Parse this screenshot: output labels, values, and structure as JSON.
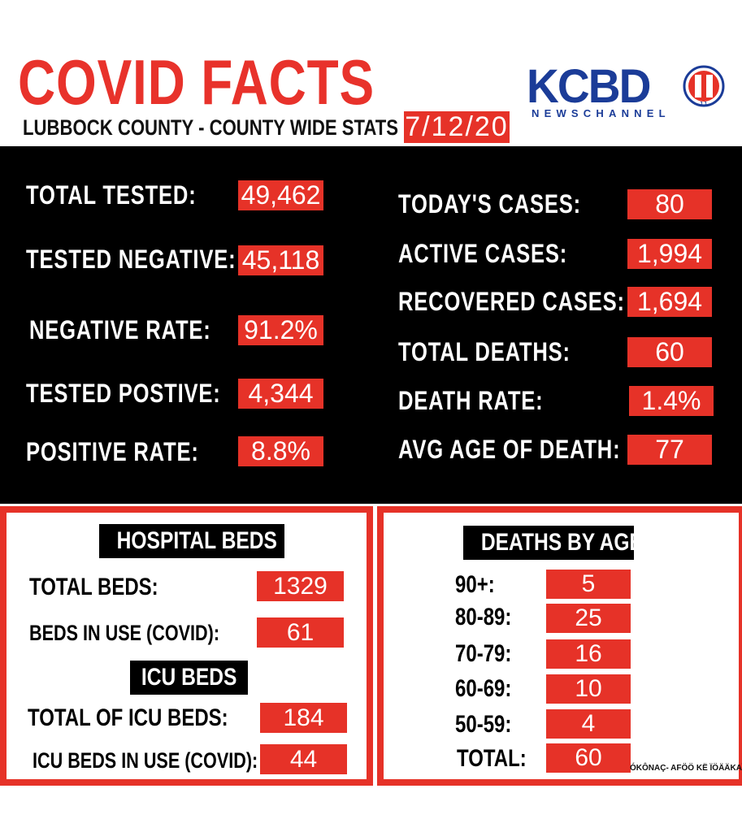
{
  "header": {
    "title": "COVID FACTS",
    "subtitle": "LUBBOCK COUNTY - COUNTY WIDE STATS",
    "date": "7/12/20"
  },
  "logo": {
    "wordmark": "KCBD",
    "tagline": "NEWSCHANNEL",
    "channel_number": "11",
    "colors": {
      "blue": "#1b3c98",
      "red": "#e63228"
    }
  },
  "testing": [
    {
      "label": "TOTAL TESTED:",
      "value": "49,462"
    },
    {
      "label": "TESTED NEGATIVE:",
      "value": "45,118"
    },
    {
      "label": "NEGATIVE RATE:",
      "value": "91.2%"
    },
    {
      "label": "TESTED POSTIVE:",
      "value": "4,344"
    },
    {
      "label": "POSITIVE RATE:",
      "value": "8.8%"
    }
  ],
  "cases": [
    {
      "label": "TODAY'S CASES:",
      "value": "80"
    },
    {
      "label": "ACTIVE CASES:",
      "value": "1,994"
    },
    {
      "label": "RECOVERED CASES:",
      "value": "1,694"
    },
    {
      "label": "TOTAL DEATHS:",
      "value": "60"
    },
    {
      "label": "DEATH RATE:",
      "value": "1.4%"
    },
    {
      "label": "AVG AGE OF DEATH:",
      "value": "77"
    }
  ],
  "hospital": {
    "heading": "HOSPITAL BEDS",
    "rows": [
      {
        "label": "TOTAL BEDS:",
        "value": "1329"
      },
      {
        "label": "BEDS IN USE (COVID):",
        "value": "61"
      }
    ],
    "icu_heading": "ICU BEDS",
    "icu_rows": [
      {
        "label": "TOTAL OF ICU BEDS:",
        "value": "184"
      },
      {
        "label": "ICU BEDS IN USE (COVID):",
        "value": "44"
      }
    ]
  },
  "deaths_by_age": {
    "heading": "DEATHS BY AGE",
    "rows": [
      {
        "label": "90+:",
        "value": "5"
      },
      {
        "label": "80-89:",
        "value": "25"
      },
      {
        "label": "70-79:",
        "value": "16"
      },
      {
        "label": "60-69:",
        "value": "10"
      },
      {
        "label": "50-59:",
        "value": "4"
      },
      {
        "label": "TOTAL:",
        "value": "60"
      }
    ]
  },
  "credit": "ÓKÔNAÇ- AFÖÖ KË ÏÖÄÄKAÏ",
  "colors": {
    "accent_red": "#e63228",
    "title_red": "#e8322b",
    "background_black": "#000000"
  }
}
